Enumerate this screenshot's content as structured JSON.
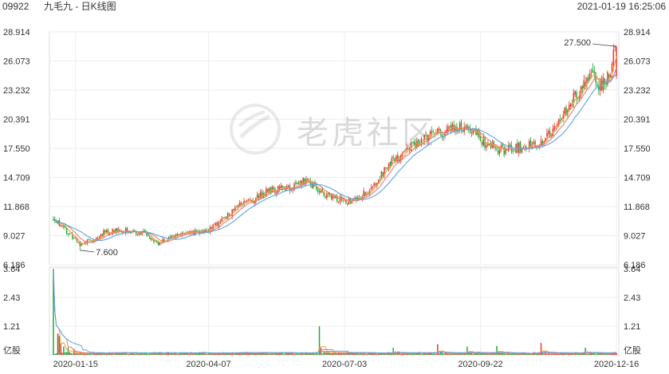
{
  "header": {
    "code": "09922",
    "name": "九毛九 - 日K线图",
    "datetime": "2021-01-19 16:25:06"
  },
  "watermark": {
    "text": "老虎社区"
  },
  "chart_data": {
    "type": "candlestick",
    "price_axis": {
      "ticks": [
        "28.914",
        "26.073",
        "23.232",
        "20.391",
        "17.550",
        "14.709",
        "11.868",
        "9.027",
        "6.186"
      ],
      "range": [
        6.186,
        28.914
      ]
    },
    "volume_axis": {
      "ticks": [
        "3.64",
        "2.43",
        "1.21"
      ],
      "unit": "亿股",
      "range": [
        0,
        3.64
      ]
    },
    "x_ticks": [
      "2020-01-15",
      "2020-04-07",
      "2020-07-03",
      "2020-09-22",
      "2020-12-16"
    ],
    "annotations": {
      "high": "27.500",
      "low": "7.600"
    },
    "close_anchors": [
      [
        0,
        10.8
      ],
      [
        8,
        9.6
      ],
      [
        18,
        8.3
      ],
      [
        27,
        8.6
      ],
      [
        35,
        9.4
      ],
      [
        50,
        9.6
      ],
      [
        62,
        9.2
      ],
      [
        70,
        8.3
      ],
      [
        78,
        8.7
      ],
      [
        90,
        9.3
      ],
      [
        105,
        9.5
      ],
      [
        115,
        10.6
      ],
      [
        125,
        11.9
      ],
      [
        135,
        12.6
      ],
      [
        145,
        13.4
      ],
      [
        160,
        13.7
      ],
      [
        172,
        14.5
      ],
      [
        180,
        13.2
      ],
      [
        195,
        12.5
      ],
      [
        205,
        12.6
      ],
      [
        215,
        13.5
      ],
      [
        225,
        15.6
      ],
      [
        235,
        17.0
      ],
      [
        245,
        18.0
      ],
      [
        255,
        18.8
      ],
      [
        265,
        19.2
      ],
      [
        275,
        19.8
      ],
      [
        285,
        19.2
      ],
      [
        292,
        18.1
      ],
      [
        300,
        17.3
      ],
      [
        310,
        17.5
      ],
      [
        320,
        17.8
      ],
      [
        330,
        18.0
      ],
      [
        340,
        19.8
      ],
      [
        350,
        22.0
      ],
      [
        358,
        23.5
      ],
      [
        364,
        24.8
      ],
      [
        370,
        23.6
      ],
      [
        376,
        24.6
      ],
      [
        380,
        27.5
      ]
    ],
    "volume_spikes": [
      [
        0,
        3.64
      ],
      [
        3,
        0.9
      ],
      [
        4,
        0.8
      ],
      [
        5,
        0.5
      ],
      [
        7,
        0.35
      ],
      [
        10,
        0.3
      ],
      [
        14,
        0.25
      ],
      [
        180,
        1.21
      ],
      [
        181,
        0.3
      ],
      [
        230,
        0.3
      ],
      [
        260,
        0.45
      ],
      [
        280,
        0.35
      ],
      [
        300,
        0.38
      ],
      [
        330,
        0.5
      ],
      [
        360,
        0.3
      ],
      [
        380,
        0.12
      ]
    ],
    "colors": {
      "up": "#e8352e",
      "down": "#20a83a",
      "ma5": "#f1a33b",
      "ma10": "#e67a7a",
      "ma20": "#5aa4e0"
    }
  }
}
